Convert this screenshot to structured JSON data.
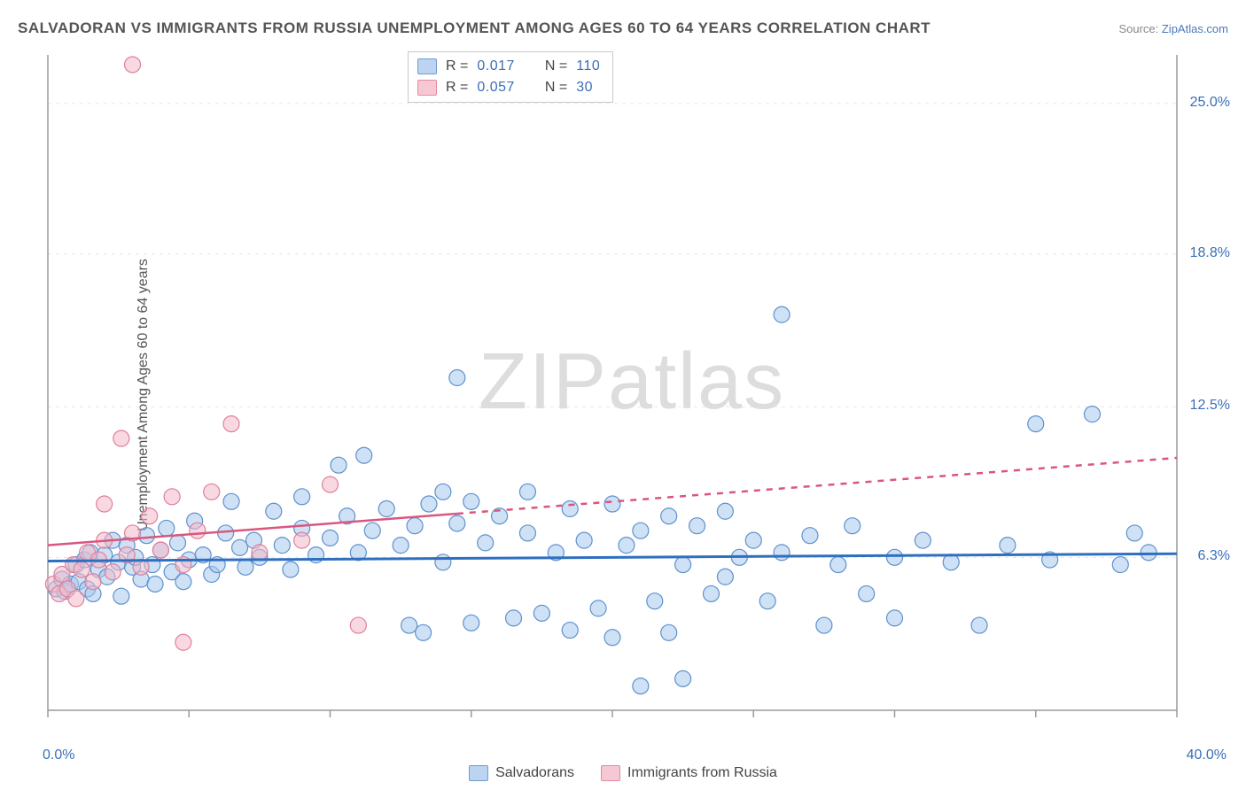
{
  "title": "SALVADORAN VS IMMIGRANTS FROM RUSSIA UNEMPLOYMENT AMONG AGES 60 TO 64 YEARS CORRELATION CHART",
  "source_prefix": "Source: ",
  "source_name": "ZipAtlas.com",
  "ylabel": "Unemployment Among Ages 60 to 64 years",
  "watermark": "ZIPatlas",
  "legend_top": {
    "r_label": "R =",
    "n_label": "N =",
    "series": [
      {
        "swatch_fill": "#bcd4ef",
        "swatch_stroke": "#6a9bd8",
        "r": "0.017",
        "n": "110"
      },
      {
        "swatch_fill": "#f6c8d4",
        "swatch_stroke": "#e48aa4",
        "r": "0.057",
        "n": "30"
      }
    ]
  },
  "legend_bottom": [
    {
      "swatch_fill": "#bcd4ef",
      "swatch_stroke": "#6a9bd8",
      "label": "Salvadorans"
    },
    {
      "swatch_fill": "#f6c8d4",
      "swatch_stroke": "#e48aa4",
      "label": "Immigrants from Russia"
    }
  ],
  "chart": {
    "type": "scatter",
    "xlim": [
      0,
      40
    ],
    "ylim": [
      0,
      27
    ],
    "xtick_step": 5,
    "ytick_labels": [
      {
        "v": 6.3,
        "label": "6.3%"
      },
      {
        "v": 12.5,
        "label": "12.5%"
      },
      {
        "v": 18.8,
        "label": "18.8%"
      },
      {
        "v": 25.0,
        "label": "25.0%"
      }
    ],
    "x_start_label": "0.0%",
    "x_end_label": "40.0%",
    "grid_color": "#e6e6e6",
    "axis_color": "#9a9a9a",
    "marker_radius": 9,
    "marker_stroke_width": 1.2,
    "marker_fill_opacity": 0.55,
    "series_blue": {
      "fill": "#a8c8ec",
      "stroke": "#5f91cf",
      "trend_color": "#2f6fc0",
      "trend_width": 3,
      "trend": {
        "x1": 0,
        "y1": 6.15,
        "x2": 40,
        "y2": 6.45
      },
      "points": [
        [
          0.3,
          5.0
        ],
        [
          0.5,
          5.4
        ],
        [
          0.6,
          4.9
        ],
        [
          0.8,
          5.2
        ],
        [
          1.0,
          6.0
        ],
        [
          1.1,
          5.3
        ],
        [
          1.3,
          6.2
        ],
        [
          1.4,
          5.0
        ],
        [
          1.5,
          6.5
        ],
        [
          1.6,
          4.8
        ],
        [
          1.8,
          5.8
        ],
        [
          2.0,
          6.4
        ],
        [
          2.1,
          5.5
        ],
        [
          2.3,
          7.0
        ],
        [
          2.5,
          6.1
        ],
        [
          2.6,
          4.7
        ],
        [
          2.8,
          6.8
        ],
        [
          3.0,
          5.9
        ],
        [
          3.1,
          6.3
        ],
        [
          3.3,
          5.4
        ],
        [
          3.5,
          7.2
        ],
        [
          3.7,
          6.0
        ],
        [
          3.8,
          5.2
        ],
        [
          4.0,
          6.6
        ],
        [
          4.2,
          7.5
        ],
        [
          4.4,
          5.7
        ],
        [
          4.6,
          6.9
        ],
        [
          4.8,
          5.3
        ],
        [
          5.0,
          6.2
        ],
        [
          5.2,
          7.8
        ],
        [
          5.5,
          6.4
        ],
        [
          5.8,
          5.6
        ],
        [
          6.0,
          6.0
        ],
        [
          6.3,
          7.3
        ],
        [
          6.5,
          8.6
        ],
        [
          6.8,
          6.7
        ],
        [
          7.0,
          5.9
        ],
        [
          7.3,
          7.0
        ],
        [
          7.5,
          6.3
        ],
        [
          8.0,
          8.2
        ],
        [
          8.3,
          6.8
        ],
        [
          8.6,
          5.8
        ],
        [
          9.0,
          7.5
        ],
        [
          9.0,
          8.8
        ],
        [
          9.5,
          6.4
        ],
        [
          10.0,
          7.1
        ],
        [
          10.3,
          10.1
        ],
        [
          10.6,
          8.0
        ],
        [
          11.0,
          6.5
        ],
        [
          11.2,
          10.5
        ],
        [
          11.5,
          7.4
        ],
        [
          12.0,
          8.3
        ],
        [
          12.5,
          6.8
        ],
        [
          12.8,
          3.5
        ],
        [
          13.0,
          7.6
        ],
        [
          13.3,
          3.2
        ],
        [
          13.5,
          8.5
        ],
        [
          14.0,
          6.1
        ],
        [
          14.0,
          9.0
        ],
        [
          14.5,
          7.7
        ],
        [
          14.5,
          13.7
        ],
        [
          15.0,
          8.6
        ],
        [
          15.0,
          3.6
        ],
        [
          15.5,
          6.9
        ],
        [
          16.0,
          8.0
        ],
        [
          16.5,
          3.8
        ],
        [
          17.0,
          7.3
        ],
        [
          17.0,
          9.0
        ],
        [
          17.5,
          4.0
        ],
        [
          18.0,
          6.5
        ],
        [
          18.5,
          8.3
        ],
        [
          18.5,
          3.3
        ],
        [
          19.0,
          7.0
        ],
        [
          19.5,
          4.2
        ],
        [
          20.0,
          8.5
        ],
        [
          20.0,
          3.0
        ],
        [
          20.5,
          6.8
        ],
        [
          21.0,
          7.4
        ],
        [
          21.0,
          1.0
        ],
        [
          21.5,
          4.5
        ],
        [
          22.0,
          8.0
        ],
        [
          22.0,
          3.2
        ],
        [
          22.5,
          6.0
        ],
        [
          22.5,
          1.3
        ],
        [
          23.0,
          7.6
        ],
        [
          23.5,
          4.8
        ],
        [
          24.0,
          5.5
        ],
        [
          24.0,
          8.2
        ],
        [
          24.5,
          6.3
        ],
        [
          25.0,
          7.0
        ],
        [
          25.5,
          4.5
        ],
        [
          26.0,
          16.3
        ],
        [
          26.0,
          6.5
        ],
        [
          27.0,
          7.2
        ],
        [
          27.5,
          3.5
        ],
        [
          28.0,
          6.0
        ],
        [
          28.5,
          7.6
        ],
        [
          29.0,
          4.8
        ],
        [
          30.0,
          6.3
        ],
        [
          30.0,
          3.8
        ],
        [
          31.0,
          7.0
        ],
        [
          32.0,
          6.1
        ],
        [
          33.0,
          3.5
        ],
        [
          34.0,
          6.8
        ],
        [
          35.0,
          11.8
        ],
        [
          35.5,
          6.2
        ],
        [
          37.0,
          12.2
        ],
        [
          38.0,
          6.0
        ],
        [
          38.5,
          7.3
        ],
        [
          39.0,
          6.5
        ]
      ]
    },
    "series_pink": {
      "fill": "#f3bac9",
      "stroke": "#e07f9c",
      "trend_color": "#d9577e",
      "trend_width": 2.5,
      "trend_solid": {
        "x1": 0,
        "y1": 6.8,
        "x2": 14.5,
        "y2": 8.1
      },
      "trend_dash": {
        "x1": 14.5,
        "y1": 8.1,
        "x2": 40,
        "y2": 10.4
      },
      "points": [
        [
          0.2,
          5.2
        ],
        [
          0.4,
          4.8
        ],
        [
          0.5,
          5.6
        ],
        [
          0.7,
          5.0
        ],
        [
          0.9,
          6.0
        ],
        [
          1.0,
          4.6
        ],
        [
          1.2,
          5.8
        ],
        [
          1.4,
          6.5
        ],
        [
          1.6,
          5.3
        ],
        [
          1.8,
          6.2
        ],
        [
          2.0,
          7.0
        ],
        [
          2.0,
          8.5
        ],
        [
          2.3,
          5.7
        ],
        [
          2.6,
          11.2
        ],
        [
          2.8,
          6.4
        ],
        [
          3.0,
          7.3
        ],
        [
          3.0,
          26.6
        ],
        [
          3.3,
          5.9
        ],
        [
          3.6,
          8.0
        ],
        [
          4.0,
          6.6
        ],
        [
          4.4,
          8.8
        ],
        [
          4.8,
          6.0
        ],
        [
          4.8,
          2.8
        ],
        [
          5.3,
          7.4
        ],
        [
          5.8,
          9.0
        ],
        [
          6.5,
          11.8
        ],
        [
          7.5,
          6.5
        ],
        [
          9.0,
          7.0
        ],
        [
          10.0,
          9.3
        ],
        [
          11.0,
          3.5
        ]
      ]
    }
  }
}
